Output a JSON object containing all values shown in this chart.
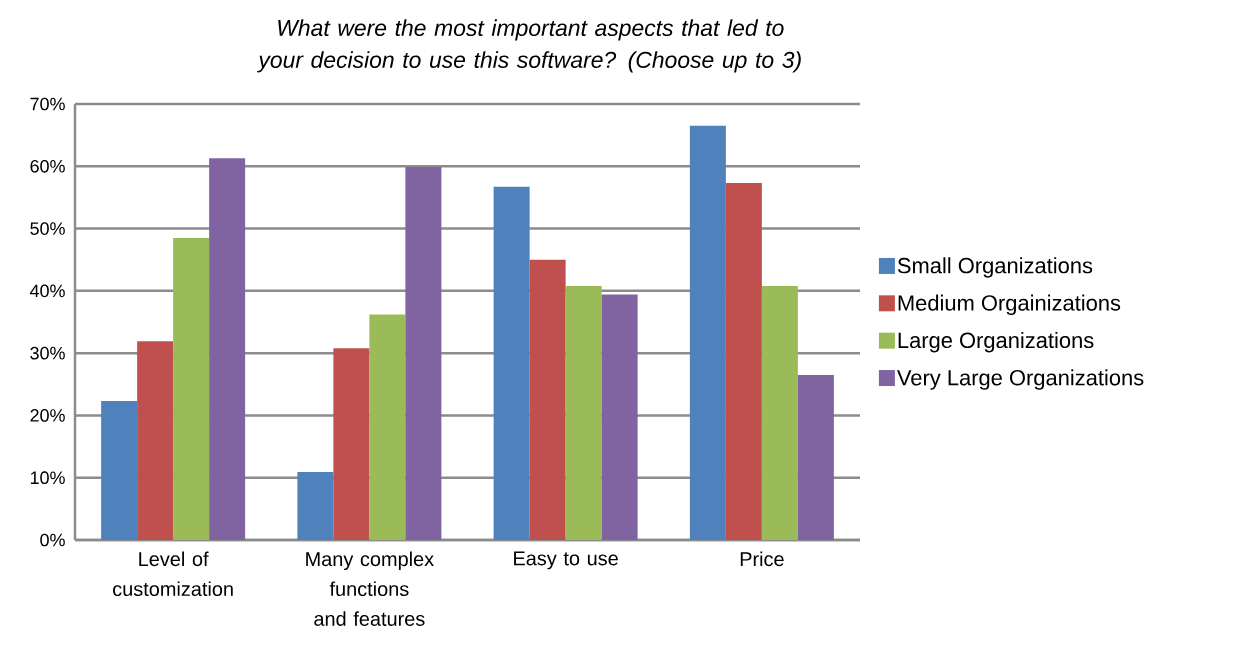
{
  "chart_data": {
    "type": "bar",
    "title": "What were the most important aspects that led to your decision to use this software? (Choose up to 3)",
    "categories": [
      "Level of customization",
      "Many complex functions and features",
      "Easy to use",
      "Price"
    ],
    "series": [
      {
        "name": "Small Organizations",
        "color": "#4f81bd",
        "values": [
          22.3,
          10.9,
          56.7,
          66.5
        ]
      },
      {
        "name": "Medium Orgainizations",
        "color": "#c0504d",
        "values": [
          31.9,
          30.8,
          45.0,
          57.3
        ]
      },
      {
        "name": "Large Organizations",
        "color": "#9bbb59",
        "values": [
          48.5,
          36.2,
          40.8,
          40.8
        ]
      },
      {
        "name": "Very Large Organizations",
        "color": "#8064a2",
        "values": [
          61.3,
          59.9,
          39.4,
          26.5
        ]
      }
    ],
    "ylim": [
      0,
      70
    ],
    "yticks": [
      {
        "value": 0,
        "label": "0%"
      },
      {
        "value": 10,
        "label": "10%"
      },
      {
        "value": 20,
        "label": "20%"
      },
      {
        "value": 30,
        "label": "30%"
      },
      {
        "value": 40,
        "label": "40%"
      },
      {
        "value": 50,
        "label": "50%"
      },
      {
        "value": 60,
        "label": "60%"
      },
      {
        "value": 70,
        "label": "70%"
      }
    ],
    "grid": "y",
    "legend": "right"
  }
}
